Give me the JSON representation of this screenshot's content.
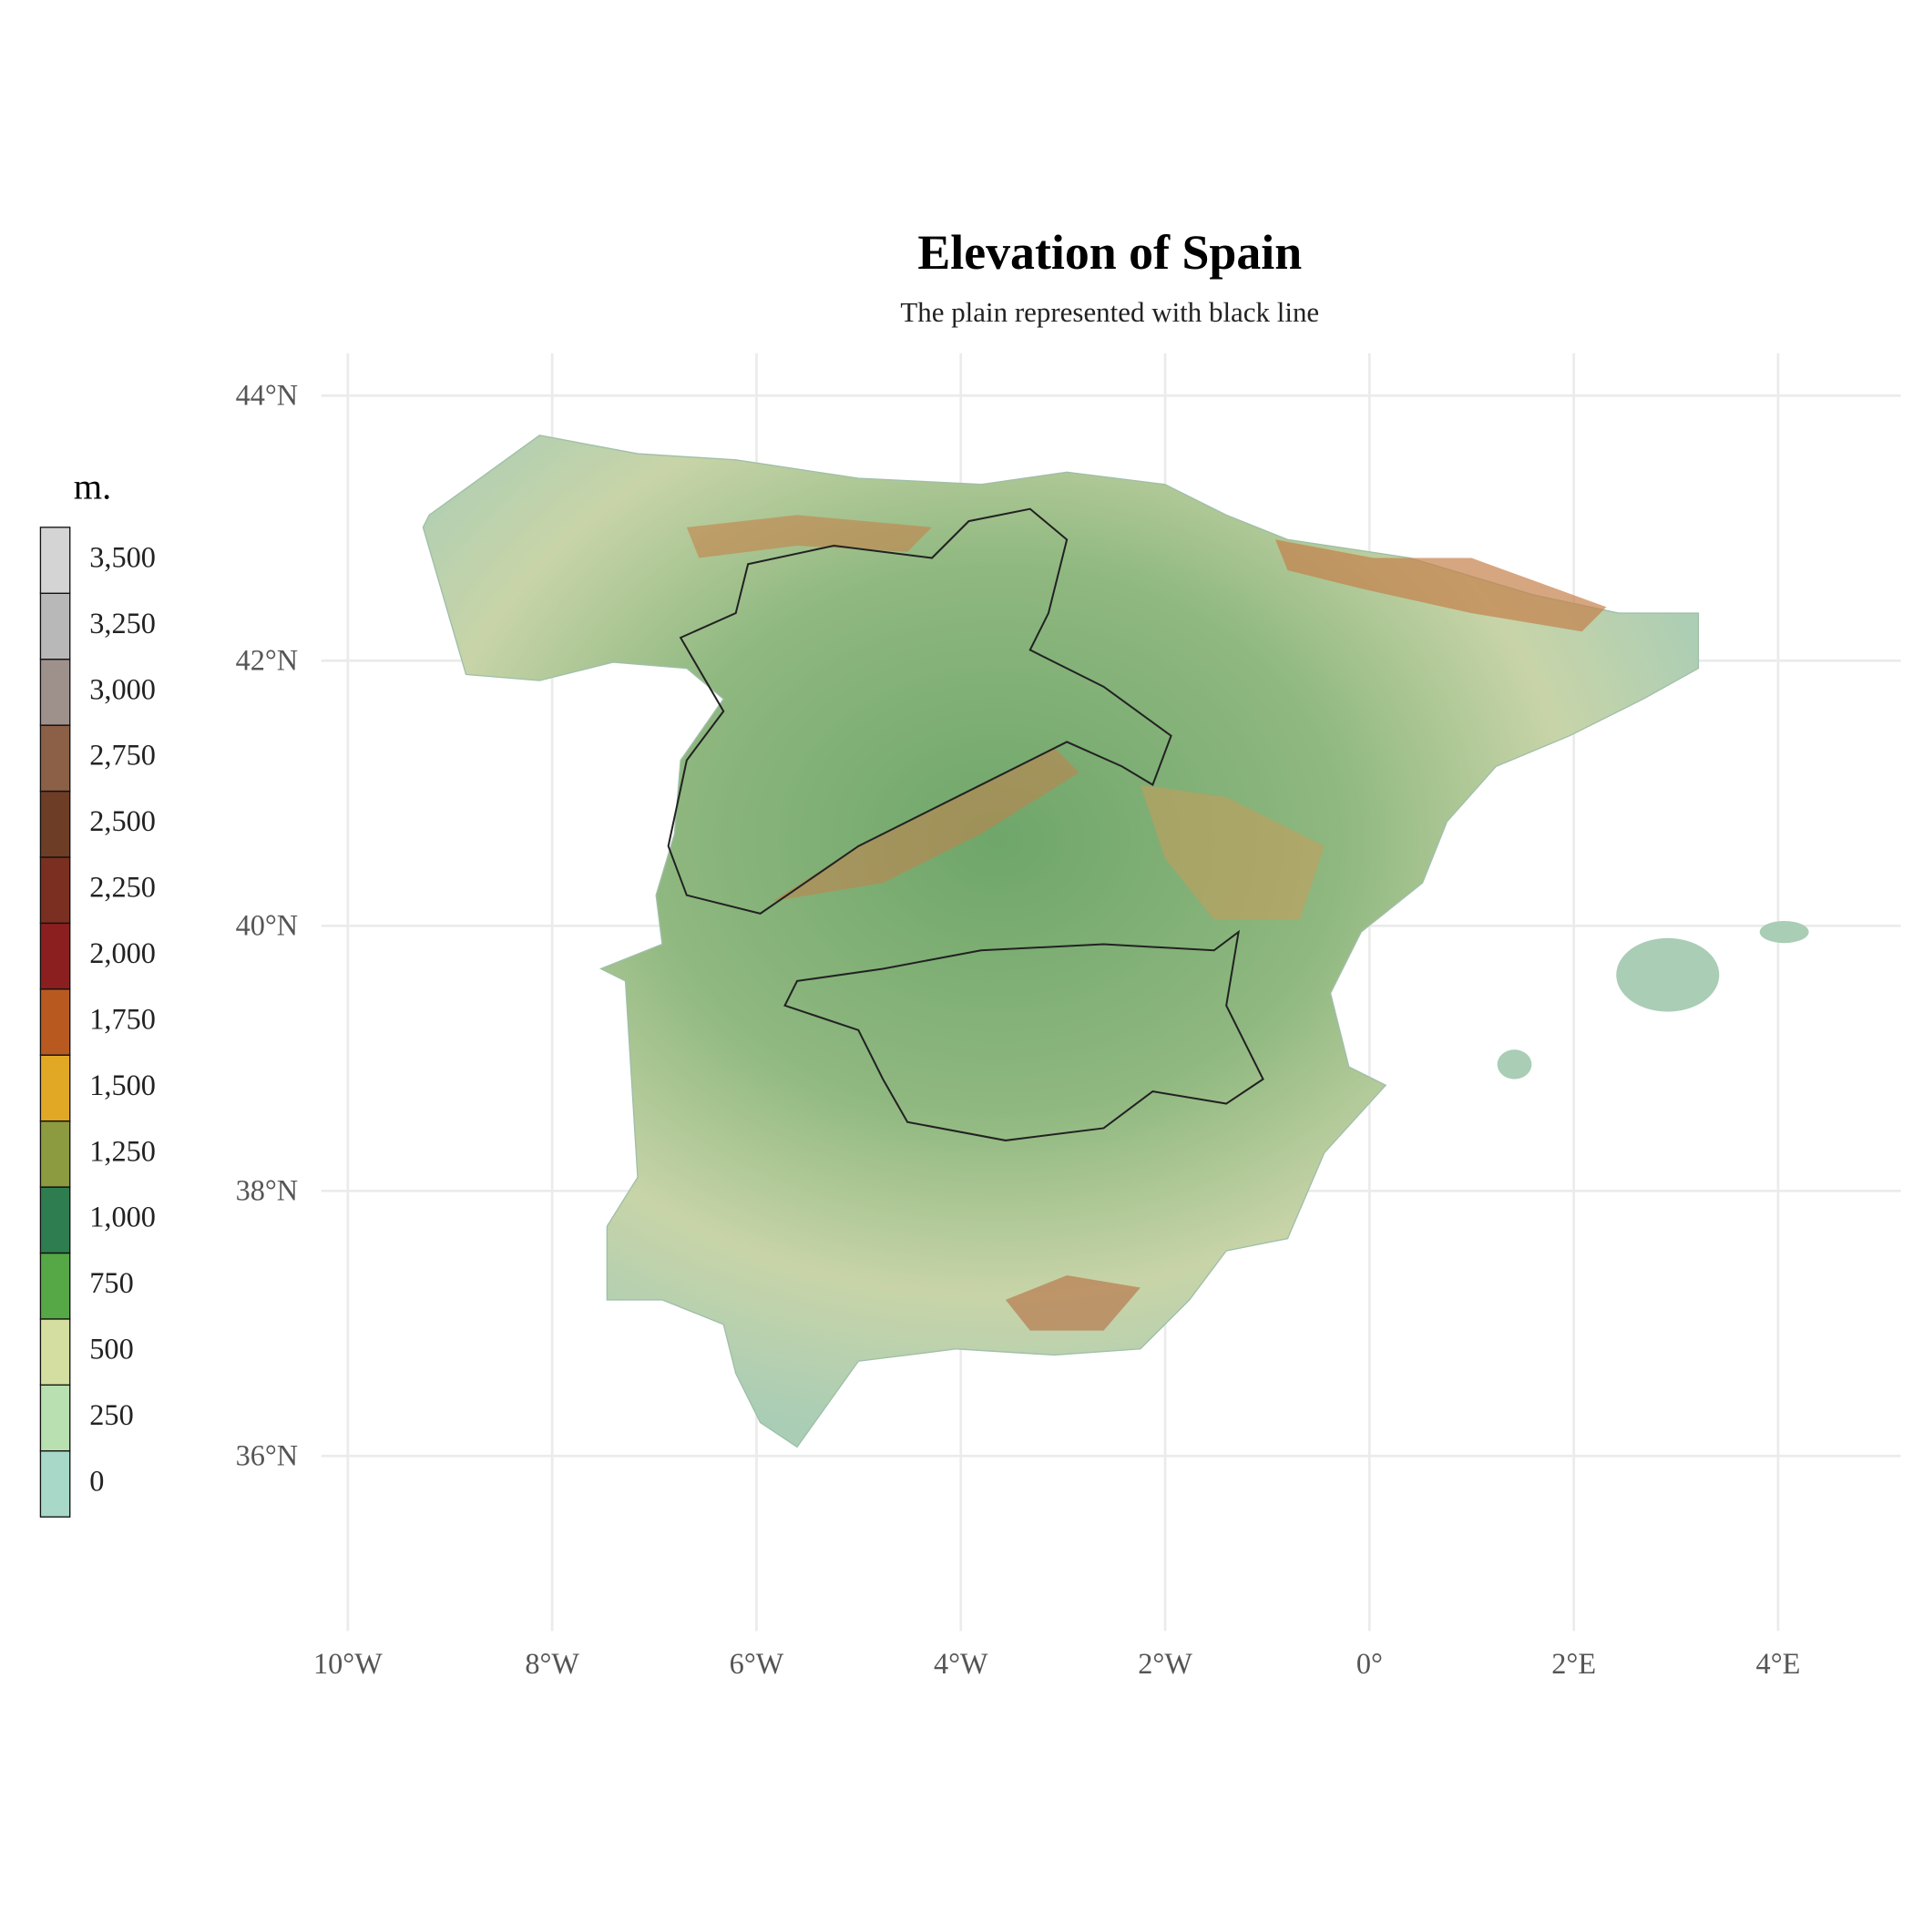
{
  "map": {
    "title": "Elevation of Spain",
    "subtitle": "The plain represented with black line",
    "xlim": [
      -10.26,
      5.2
    ],
    "ylim": [
      34.68,
      44.32
    ],
    "xticks": [
      {
        "value": -10,
        "label": "10°W"
      },
      {
        "value": -8,
        "label": "8°W"
      },
      {
        "value": -6,
        "label": "6°W"
      },
      {
        "value": -4,
        "label": "4°W"
      },
      {
        "value": -2,
        "label": "2°W"
      },
      {
        "value": 0,
        "label": "0°"
      },
      {
        "value": 2,
        "label": "2°E"
      },
      {
        "value": 4,
        "label": "4°E"
      }
    ],
    "yticks": [
      {
        "value": 36,
        "label": "36°N"
      },
      {
        "value": 38,
        "label": "38°N"
      },
      {
        "value": 40,
        "label": "40°N"
      },
      {
        "value": 42,
        "label": "42°N"
      },
      {
        "value": 44,
        "label": "44°N"
      }
    ],
    "legend": {
      "title": "m.",
      "breaks": [
        0,
        250,
        500,
        750,
        {
          "value": 1000,
          "label": "1,000"
        },
        {
          "value": 1250,
          "label": "1,250"
        },
        {
          "value": 1500,
          "label": "1,500"
        },
        {
          "value": 1750,
          "label": "1,750"
        },
        {
          "value": 2000,
          "label": "2,000"
        },
        {
          "value": 2250,
          "label": "2,250"
        },
        {
          "value": 2500,
          "label": "2,500"
        },
        {
          "value": 2750,
          "label": "2,750"
        },
        {
          "value": 3000,
          "label": "3,000"
        },
        {
          "value": 3250,
          "label": "3,250"
        },
        {
          "value": 3500,
          "label": "3,500"
        }
      ],
      "colors": [
        "#a8d8c8",
        "#b8e0b0",
        "#d4dea0",
        "#55a845",
        "#2e7d50",
        "#8c9a40",
        "#e0a825",
        "#b85a20",
        "#8b1f1f",
        "#7a2f20",
        "#6e3d25",
        "#8c5f47",
        "#9e918c",
        "#b8b8b8",
        "#d4d4d4"
      ]
    }
  }
}
